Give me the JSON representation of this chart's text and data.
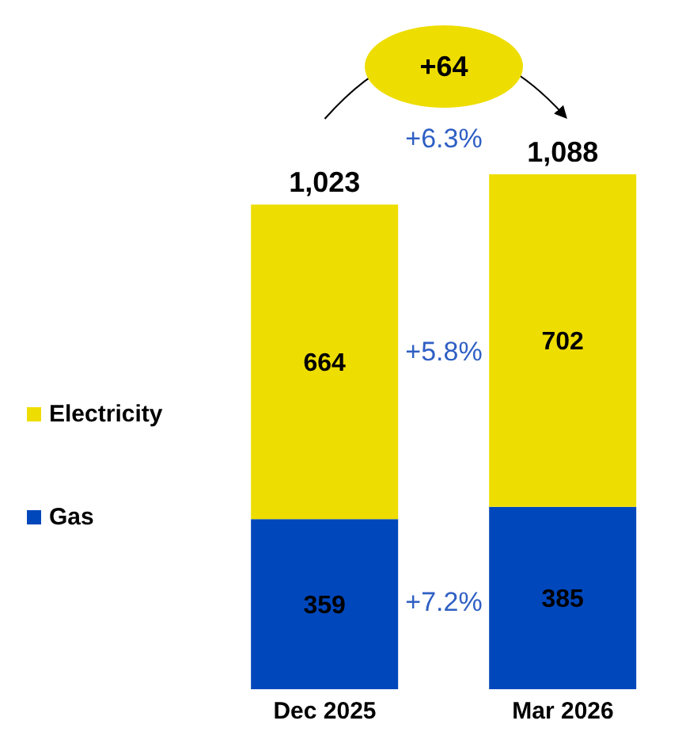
{
  "chart_data": {
    "type": "bar",
    "stacked": true,
    "categories": [
      "Dec 2025",
      "Mar 2026"
    ],
    "series": [
      {
        "name": "Gas",
        "color": "#0047bb",
        "values": [
          359,
          385
        ]
      },
      {
        "name": "Electricity",
        "color": "#eedd00",
        "values": [
          664,
          702
        ]
      }
    ],
    "data_labels": true,
    "totals": [
      "1,023",
      "1,088"
    ],
    "legend": "left",
    "grid": false,
    "annotations": [
      "+64",
      "+6.3%",
      "+5.8%",
      "+7.2%"
    ]
  }
}
